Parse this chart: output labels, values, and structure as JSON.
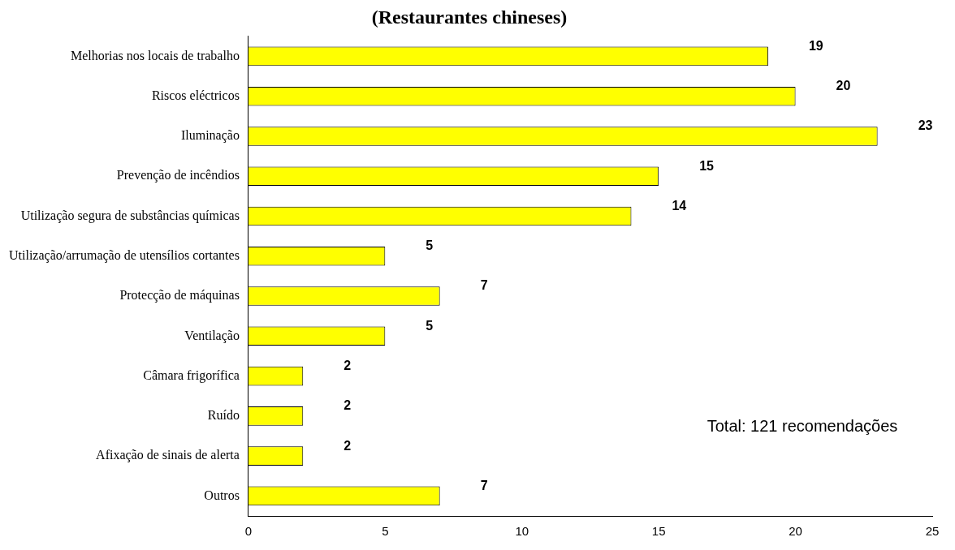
{
  "chart_data": {
    "type": "bar",
    "orientation": "horizontal",
    "title": "(Restaurantes chineses)",
    "categories": [
      "Melhorias nos locais de trabalho",
      "Riscos eléctricos",
      "Iluminação",
      "Prevenção de incêndios",
      "Utilização segura de substâncias químicas",
      "Utilização/arrumação de utensílios cortantes",
      "Protecção de máquinas",
      "Ventilação",
      "Câmara frigorífica",
      "Ruído",
      "Afixação de sinais de alerta",
      "Outros"
    ],
    "values": [
      19,
      20,
      23,
      15,
      14,
      5,
      7,
      5,
      2,
      2,
      2,
      7
    ],
    "color": "#ffff00",
    "xlim": [
      0,
      25
    ],
    "xticks": [
      0,
      5,
      10,
      15,
      20,
      25
    ],
    "grid": false,
    "legend": false,
    "data_labels": true,
    "annotations": [
      "Total: 121 recomendações"
    ]
  }
}
